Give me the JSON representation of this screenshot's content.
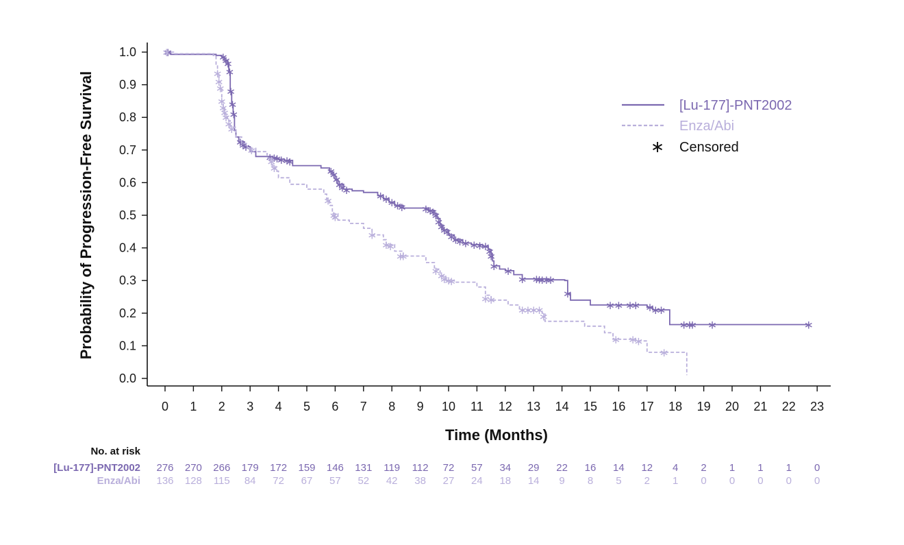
{
  "chart_data": {
    "type": "line",
    "subtype": "kaplan-meier",
    "title": "",
    "xlabel": "Time (Months)",
    "ylabel": "Probability of Progression-Free Survival",
    "xlim": [
      0,
      23
    ],
    "ylim": [
      0,
      1.0
    ],
    "xticks": [
      0,
      1,
      2,
      3,
      4,
      5,
      6,
      7,
      8,
      9,
      10,
      11,
      12,
      13,
      14,
      15,
      16,
      17,
      18,
      19,
      20,
      21,
      22,
      23
    ],
    "xtick_labels": [
      "0",
      "1",
      "2",
      "3",
      "4",
      "5",
      "6",
      "7",
      "8",
      "9",
      "10",
      "11",
      "12",
      "13",
      "14",
      "15",
      "16",
      "17",
      "18",
      "19",
      "20",
      "21",
      "22",
      "23"
    ],
    "yticks": [
      0,
      0.1,
      0.2,
      0.3,
      0.4,
      0.5,
      0.6,
      0.7,
      0.8,
      0.9,
      1.0
    ],
    "ytick_labels": [
      "0.0",
      "0.1",
      "0.2",
      "0.3",
      "0.4",
      "0.5",
      "0.6",
      "0.7",
      "0.8",
      "0.9",
      "1.0"
    ],
    "grid": false,
    "legend": {
      "position": "top-right",
      "censored_symbol": "∗",
      "censored_label": "Censored"
    },
    "series": [
      {
        "name": "[Lu-177]-PNT2002",
        "color": "#7b68b0",
        "style": "solid",
        "steps": [
          [
            0,
            1.0
          ],
          [
            0.2,
            0.993
          ],
          [
            1.8,
            0.99
          ],
          [
            2.0,
            0.985
          ],
          [
            2.1,
            0.975
          ],
          [
            2.2,
            0.965
          ],
          [
            2.25,
            0.94
          ],
          [
            2.3,
            0.88
          ],
          [
            2.35,
            0.84
          ],
          [
            2.4,
            0.81
          ],
          [
            2.45,
            0.76
          ],
          [
            2.5,
            0.74
          ],
          [
            2.6,
            0.725
          ],
          [
            2.8,
            0.71
          ],
          [
            3.0,
            0.695
          ],
          [
            3.2,
            0.68
          ],
          [
            3.8,
            0.675
          ],
          [
            4.0,
            0.672
          ],
          [
            4.2,
            0.668
          ],
          [
            4.5,
            0.652
          ],
          [
            5.5,
            0.645
          ],
          [
            5.8,
            0.635
          ],
          [
            5.9,
            0.625
          ],
          [
            6.0,
            0.61
          ],
          [
            6.1,
            0.595
          ],
          [
            6.3,
            0.58
          ],
          [
            6.6,
            0.575
          ],
          [
            7.0,
            0.57
          ],
          [
            7.5,
            0.56
          ],
          [
            7.7,
            0.55
          ],
          [
            7.9,
            0.54
          ],
          [
            8.1,
            0.53
          ],
          [
            8.4,
            0.522
          ],
          [
            9.3,
            0.515
          ],
          [
            9.5,
            0.505
          ],
          [
            9.6,
            0.49
          ],
          [
            9.7,
            0.47
          ],
          [
            9.8,
            0.455
          ],
          [
            10.0,
            0.44
          ],
          [
            10.2,
            0.425
          ],
          [
            10.5,
            0.415
          ],
          [
            10.8,
            0.41
          ],
          [
            11.2,
            0.405
          ],
          [
            11.4,
            0.395
          ],
          [
            11.5,
            0.38
          ],
          [
            11.55,
            0.36
          ],
          [
            11.6,
            0.345
          ],
          [
            11.8,
            0.335
          ],
          [
            12.0,
            0.33
          ],
          [
            12.3,
            0.318
          ],
          [
            12.6,
            0.305
          ],
          [
            13.5,
            0.302
          ],
          [
            14.1,
            0.3
          ],
          [
            14.2,
            0.26
          ],
          [
            14.3,
            0.24
          ],
          [
            15.0,
            0.225
          ],
          [
            17.0,
            0.218
          ],
          [
            17.2,
            0.21
          ],
          [
            17.8,
            0.165
          ],
          [
            22.7,
            0.165
          ]
        ],
        "censored": [
          [
            0.1,
            1.0
          ],
          [
            2.05,
            0.985
          ],
          [
            2.15,
            0.975
          ],
          [
            2.22,
            0.965
          ],
          [
            2.28,
            0.94
          ],
          [
            2.32,
            0.88
          ],
          [
            2.38,
            0.84
          ],
          [
            2.42,
            0.81
          ],
          [
            2.65,
            0.725
          ],
          [
            2.75,
            0.715
          ],
          [
            2.85,
            0.71
          ],
          [
            3.7,
            0.678
          ],
          [
            3.85,
            0.676
          ],
          [
            3.95,
            0.674
          ],
          [
            4.1,
            0.67
          ],
          [
            4.3,
            0.668
          ],
          [
            4.4,
            0.665
          ],
          [
            5.85,
            0.635
          ],
          [
            5.95,
            0.625
          ],
          [
            6.05,
            0.61
          ],
          [
            6.15,
            0.595
          ],
          [
            6.25,
            0.585
          ],
          [
            6.4,
            0.578
          ],
          [
            7.6,
            0.56
          ],
          [
            7.8,
            0.55
          ],
          [
            8.0,
            0.54
          ],
          [
            8.2,
            0.53
          ],
          [
            8.35,
            0.525
          ],
          [
            9.2,
            0.52
          ],
          [
            9.35,
            0.515
          ],
          [
            9.45,
            0.51
          ],
          [
            9.55,
            0.5
          ],
          [
            9.65,
            0.48
          ],
          [
            9.75,
            0.465
          ],
          [
            9.85,
            0.455
          ],
          [
            9.95,
            0.45
          ],
          [
            10.1,
            0.435
          ],
          [
            10.25,
            0.425
          ],
          [
            10.4,
            0.42
          ],
          [
            10.6,
            0.415
          ],
          [
            10.9,
            0.41
          ],
          [
            11.1,
            0.408
          ],
          [
            11.3,
            0.405
          ],
          [
            11.45,
            0.39
          ],
          [
            11.5,
            0.375
          ],
          [
            11.6,
            0.345
          ],
          [
            12.1,
            0.33
          ],
          [
            12.6,
            0.305
          ],
          [
            13.1,
            0.305
          ],
          [
            13.2,
            0.304
          ],
          [
            13.3,
            0.303
          ],
          [
            13.45,
            0.302
          ],
          [
            13.6,
            0.302
          ],
          [
            14.2,
            0.26
          ],
          [
            15.7,
            0.225
          ],
          [
            16.0,
            0.225
          ],
          [
            16.4,
            0.225
          ],
          [
            16.6,
            0.225
          ],
          [
            17.1,
            0.218
          ],
          [
            17.3,
            0.21
          ],
          [
            17.5,
            0.21
          ],
          [
            18.3,
            0.165
          ],
          [
            18.5,
            0.165
          ],
          [
            18.6,
            0.165
          ],
          [
            19.3,
            0.165
          ],
          [
            22.7,
            0.165
          ]
        ]
      },
      {
        "name": "Enza/Abi",
        "color": "#b9afdb",
        "style": "dashed",
        "steps": [
          [
            0,
            1.0
          ],
          [
            0.3,
            0.995
          ],
          [
            1.7,
            0.99
          ],
          [
            1.8,
            0.96
          ],
          [
            1.85,
            0.935
          ],
          [
            1.9,
            0.91
          ],
          [
            1.95,
            0.89
          ],
          [
            2.0,
            0.85
          ],
          [
            2.05,
            0.83
          ],
          [
            2.1,
            0.81
          ],
          [
            2.2,
            0.79
          ],
          [
            2.3,
            0.77
          ],
          [
            2.5,
            0.74
          ],
          [
            2.7,
            0.72
          ],
          [
            2.9,
            0.705
          ],
          [
            3.2,
            0.695
          ],
          [
            3.6,
            0.675
          ],
          [
            3.8,
            0.65
          ],
          [
            3.9,
            0.635
          ],
          [
            4.0,
            0.615
          ],
          [
            4.4,
            0.595
          ],
          [
            5.0,
            0.58
          ],
          [
            5.6,
            0.565
          ],
          [
            5.7,
            0.55
          ],
          [
            5.8,
            0.53
          ],
          [
            5.9,
            0.505
          ],
          [
            6.1,
            0.485
          ],
          [
            6.5,
            0.475
          ],
          [
            7.0,
            0.46
          ],
          [
            7.3,
            0.44
          ],
          [
            7.7,
            0.425
          ],
          [
            7.8,
            0.41
          ],
          [
            8.1,
            0.39
          ],
          [
            8.4,
            0.375
          ],
          [
            9.2,
            0.355
          ],
          [
            9.5,
            0.335
          ],
          [
            9.7,
            0.315
          ],
          [
            9.9,
            0.3
          ],
          [
            10.2,
            0.295
          ],
          [
            11.0,
            0.28
          ],
          [
            11.3,
            0.255
          ],
          [
            11.5,
            0.24
          ],
          [
            12.1,
            0.225
          ],
          [
            12.5,
            0.21
          ],
          [
            13.3,
            0.2
          ],
          [
            13.4,
            0.175
          ],
          [
            14.8,
            0.16
          ],
          [
            15.5,
            0.14
          ],
          [
            15.8,
            0.12
          ],
          [
            16.6,
            0.115
          ],
          [
            17.0,
            0.08
          ],
          [
            18.4,
            0.01
          ]
        ],
        "censored": [
          [
            0.05,
            1.0
          ],
          [
            1.85,
            0.935
          ],
          [
            1.9,
            0.91
          ],
          [
            1.95,
            0.89
          ],
          [
            2.0,
            0.85
          ],
          [
            2.05,
            0.83
          ],
          [
            2.1,
            0.815
          ],
          [
            2.15,
            0.8
          ],
          [
            2.25,
            0.78
          ],
          [
            2.35,
            0.765
          ],
          [
            3.05,
            0.7
          ],
          [
            3.75,
            0.665
          ],
          [
            3.85,
            0.645
          ],
          [
            5.75,
            0.545
          ],
          [
            5.95,
            0.5
          ],
          [
            6.0,
            0.495
          ],
          [
            7.3,
            0.44
          ],
          [
            7.8,
            0.41
          ],
          [
            7.95,
            0.405
          ],
          [
            8.3,
            0.375
          ],
          [
            8.4,
            0.375
          ],
          [
            9.55,
            0.33
          ],
          [
            9.75,
            0.315
          ],
          [
            9.85,
            0.305
          ],
          [
            10.0,
            0.3
          ],
          [
            10.1,
            0.298
          ],
          [
            11.3,
            0.245
          ],
          [
            11.5,
            0.242
          ],
          [
            12.6,
            0.21
          ],
          [
            12.8,
            0.21
          ],
          [
            13.0,
            0.21
          ],
          [
            13.2,
            0.21
          ],
          [
            13.35,
            0.19
          ],
          [
            15.9,
            0.12
          ],
          [
            16.5,
            0.12
          ],
          [
            16.7,
            0.115
          ],
          [
            17.6,
            0.08
          ]
        ]
      }
    ],
    "risk_table": {
      "header": "No. at risk",
      "times": [
        0,
        1,
        2,
        3,
        4,
        5,
        6,
        7,
        8,
        9,
        10,
        11,
        12,
        13,
        14,
        15,
        16,
        17,
        18,
        19,
        20,
        21,
        22,
        23
      ],
      "rows": [
        {
          "name": "[Lu-177]-PNT2002",
          "color": "#7b68b0",
          "values": [
            "276",
            "270",
            "266",
            "179",
            "172",
            "159",
            "146",
            "131",
            "119",
            "112",
            "72",
            "57",
            "34",
            "29",
            "22",
            "16",
            "14",
            "12",
            "4",
            "2",
            "1",
            "1",
            "1",
            "0"
          ]
        },
        {
          "name": "Enza/Abi",
          "color": "#b9afdb",
          "values": [
            "136",
            "128",
            "115",
            "84",
            "72",
            "67",
            "57",
            "52",
            "42",
            "38",
            "27",
            "24",
            "18",
            "14",
            "9",
            "8",
            "5",
            "2",
            "1",
            "0",
            "0",
            "0",
            "0",
            "0"
          ]
        }
      ]
    }
  }
}
